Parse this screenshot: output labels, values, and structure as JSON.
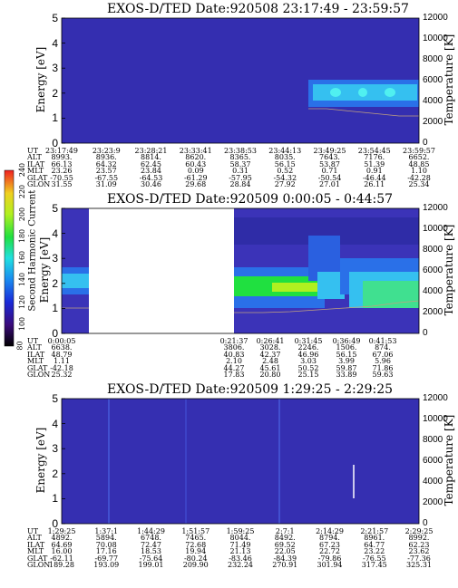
{
  "colorbar": {
    "label": "Second Harmonic Current",
    "ticks": [
      "240",
      "220",
      "200",
      "180",
      "160",
      "140",
      "120",
      "100",
      "80"
    ]
  },
  "panels": [
    {
      "title": "EXOS-D/TED  Date:920508  23:17:49 - 23:59:57",
      "ylabel": "Energy [eV]",
      "y2label": "Temperature [K]",
      "yticks": [
        "5",
        "4",
        "3",
        "2",
        "1",
        "0"
      ],
      "y2ticks": [
        "12000",
        "10000",
        "8000",
        "6000",
        "4000",
        "2000",
        "0"
      ],
      "row_labels": [
        "UT",
        "ALT",
        "ILAT",
        "MLT",
        "GLAT",
        "GLON"
      ],
      "columns": [
        [
          "23:17:49",
          "8993.",
          "66.13",
          "23.26",
          "-70.55",
          "31.55"
        ],
        [
          "23:23:9",
          "8936.",
          "64.32",
          "23.57",
          "-67.55",
          "31.09"
        ],
        [
          "23:28:21",
          "8814.",
          "62.45",
          "23.84",
          "-64.53",
          "30.46"
        ],
        [
          "23:33:41",
          "8620.",
          "60.43",
          "0.09",
          "-61.29",
          "29.68"
        ],
        [
          "23:38:53",
          "8365.",
          "58.37",
          "0.31",
          "-57.95",
          "28.84"
        ],
        [
          "23:44:13",
          "8035.",
          "56.15",
          "0.52",
          "-54.32",
          "27.92"
        ],
        [
          "23:49:25",
          "7643.",
          "53.87",
          "0.71",
          "-50.54",
          "27.01"
        ],
        [
          "23:54:45",
          "7176.",
          "51.39",
          "0.91",
          "-46.44",
          "26.11"
        ],
        [
          "23:59:57",
          "6652.",
          "48.85",
          "1.10",
          "-42.28",
          "25.34"
        ]
      ]
    },
    {
      "title": "EXOS-D/TED  Date:920509  0:00:05 - 0:44:57",
      "ylabel": "Energy [eV]",
      "y2label": "Temperature [K]",
      "yticks": [
        "5",
        "4",
        "3",
        "2",
        "1",
        "0"
      ],
      "y2ticks": [
        "12000",
        "10000",
        "8000",
        "6000",
        "4000",
        "2000",
        "0"
      ],
      "row_labels": [
        "UT",
        "ALT",
        "ILAT",
        "MLT",
        "GLAT",
        "GLON"
      ],
      "columns": [
        [
          "0:00:05",
          "6638.",
          "48.79",
          "1.11",
          "-42.18",
          "25.32"
        ],
        [
          "0:21:37",
          "3806.",
          "40.83",
          "2.10",
          "44.27",
          "17.83"
        ],
        [
          "0:26:41",
          "3028.",
          "42.37",
          "2.48",
          "45.61",
          "20.80"
        ],
        [
          "0:31:45",
          "2246.",
          "46.96",
          "3.03",
          "50.52",
          "25.15"
        ],
        [
          "0:36:49",
          "1506.",
          "56.15",
          "3.99",
          "59.87",
          "33.89"
        ],
        [
          "0:41:53",
          "874.",
          "67.06",
          "5.96",
          "71.86",
          "59.63"
        ]
      ]
    },
    {
      "title": "EXOS-D/TED  Date:920509  1:29:25 - 2:29:25",
      "ylabel": "Energy [eV]",
      "y2label": "Temperature [K]",
      "yticks": [
        "5",
        "4",
        "3",
        "2",
        "1",
        "0"
      ],
      "y2ticks": [
        "12000",
        "10000",
        "8000",
        "6000",
        "4000",
        "2000",
        "0"
      ],
      "row_labels": [
        "UT",
        "ALT",
        "ILAT",
        "MLT",
        "GLAT",
        "GLON"
      ],
      "columns": [
        [
          "1:29:25",
          "4892.",
          "64.69",
          "16.00",
          "-62.11",
          "189.28"
        ],
        [
          "1:37:1",
          "5894.",
          "70.08",
          "17.16",
          "-69.77",
          "193.09"
        ],
        [
          "1:44:29",
          "6748.",
          "72.47",
          "18.53",
          "-75.64",
          "199.01"
        ],
        [
          "1:51:57",
          "7465.",
          "72.68",
          "19.94",
          "-80.24",
          "209.90"
        ],
        [
          "1:59:25",
          "8044.",
          "71.49",
          "21.13",
          "-83.46",
          "232.24"
        ],
        [
          "2:7:1",
          "8492.",
          "69.52",
          "22.05",
          "-84.39",
          "270.91"
        ],
        [
          "2:14:29",
          "8794.",
          "67.23",
          "22.72",
          "-79.86",
          "301.94"
        ],
        [
          "2:21:57",
          "8961.",
          "64.77",
          "23.22",
          "-76.55",
          "317.45"
        ],
        [
          "2:29:25",
          "8992.",
          "62.23",
          "23.62",
          "-77.36",
          "325.31"
        ]
      ]
    }
  ],
  "chart_data": [
    {
      "type": "heatmap",
      "title": "EXOS-D/TED  Date:920508  23:17:49 - 23:59:57",
      "xlabel": "UT",
      "ylabel": "Energy [eV]",
      "y2label": "Temperature [K]",
      "ylim": [
        0,
        5
      ],
      "y2lim": [
        0,
        12000
      ],
      "colorbar_range": [
        80,
        240
      ],
      "description_bands": [
        {
          "x_start": "23:49:25",
          "x_end": "23:59:57",
          "energy_center": 2.0,
          "level": 150
        }
      ]
    },
    {
      "type": "heatmap",
      "title": "EXOS-D/TED  Date:920509  0:00:05 - 0:44:57",
      "xlabel": "UT",
      "ylabel": "Energy [eV]",
      "y2label": "Temperature [K]",
      "ylim": [
        0,
        5
      ],
      "y2lim": [
        0,
        12000
      ],
      "colorbar_range": [
        80,
        240
      ],
      "data_gap": [
        "0:00:05",
        "0:21:37"
      ]
    },
    {
      "type": "heatmap",
      "title": "EXOS-D/TED  Date:920509  1:29:25 - 2:29:25",
      "xlabel": "UT",
      "ylabel": "Energy [eV]",
      "y2label": "Temperature [K]",
      "ylim": [
        0,
        5
      ],
      "y2lim": [
        0,
        12000
      ],
      "colorbar_range": [
        80,
        240
      ]
    }
  ]
}
